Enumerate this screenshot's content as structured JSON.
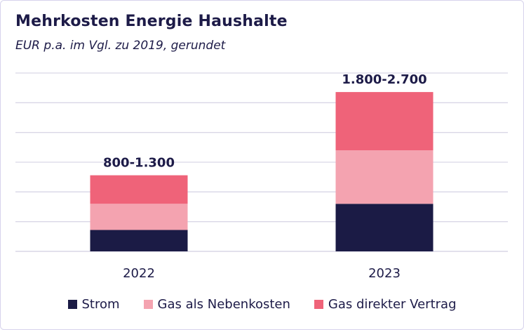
{
  "header": {
    "title": "Mehrkosten Energie Haushalte",
    "subtitle": "EUR p.a. im Vgl. zu 2019, gerundet"
  },
  "chart_data": {
    "type": "bar",
    "stacked": true,
    "title": "Mehrkosten Energie Haushalte",
    "subtitle": "EUR p.a. im Vgl. zu 2019, gerundet",
    "categories": [
      "2022",
      "2023"
    ],
    "series": [
      {
        "name": "Strom",
        "color": "#1b1b45",
        "values": [
          180,
          400
        ]
      },
      {
        "name": "Gas als Nebenkosten",
        "color": "#f4a3b0",
        "values": [
          220,
          450
        ]
      },
      {
        "name": "Gas direkter Vertrag",
        "color": "#ef6379",
        "values": [
          240,
          490
        ]
      }
    ],
    "totals_labels": [
      "800-1.300",
      "1.800-2.700"
    ],
    "ylim": [
      0,
      1500
    ],
    "gridline_count": 6,
    "grid": true,
    "y_tick_labels_visible": false,
    "xlabel": "",
    "ylabel": "",
    "legend_position": "bottom-center"
  }
}
